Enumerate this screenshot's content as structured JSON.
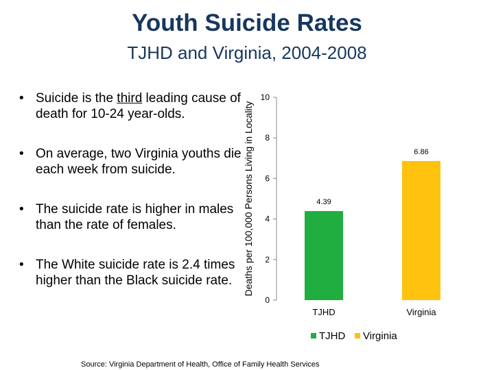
{
  "title": "Youth Suicide Rates",
  "subtitle": "TJHD and Virginia, 2004-2008",
  "bullets": [
    {
      "before": "Suicide is the ",
      "emph": "third",
      "after": " leading cause of death for 10-24 year-olds."
    },
    {
      "text": "On average, two Virginia youths die each week from suicide."
    },
    {
      "text": "The suicide rate is higher in males than the rate of females."
    },
    {
      "text": "The White suicide rate is 2.4 times higher than the Black suicide rate."
    }
  ],
  "source": "Source: Virginia Department of Health, Office of Family Health Services",
  "chart_data": {
    "type": "bar",
    "categories": [
      "TJHD",
      "Virginia"
    ],
    "values": [
      4.39,
      6.86
    ],
    "value_labels": [
      "4.39",
      "6.86"
    ],
    "colors": [
      "#1fae3f",
      "#ffc20e"
    ],
    "ylabel": "Deaths per 100,000 Persons Living in Locality",
    "ylim": [
      0,
      10
    ],
    "yticks": [
      0,
      2,
      4,
      6,
      8,
      10
    ],
    "grid": false,
    "legend": {
      "placement": "bottom",
      "entries": [
        "TJHD",
        "Virginia"
      ]
    }
  }
}
